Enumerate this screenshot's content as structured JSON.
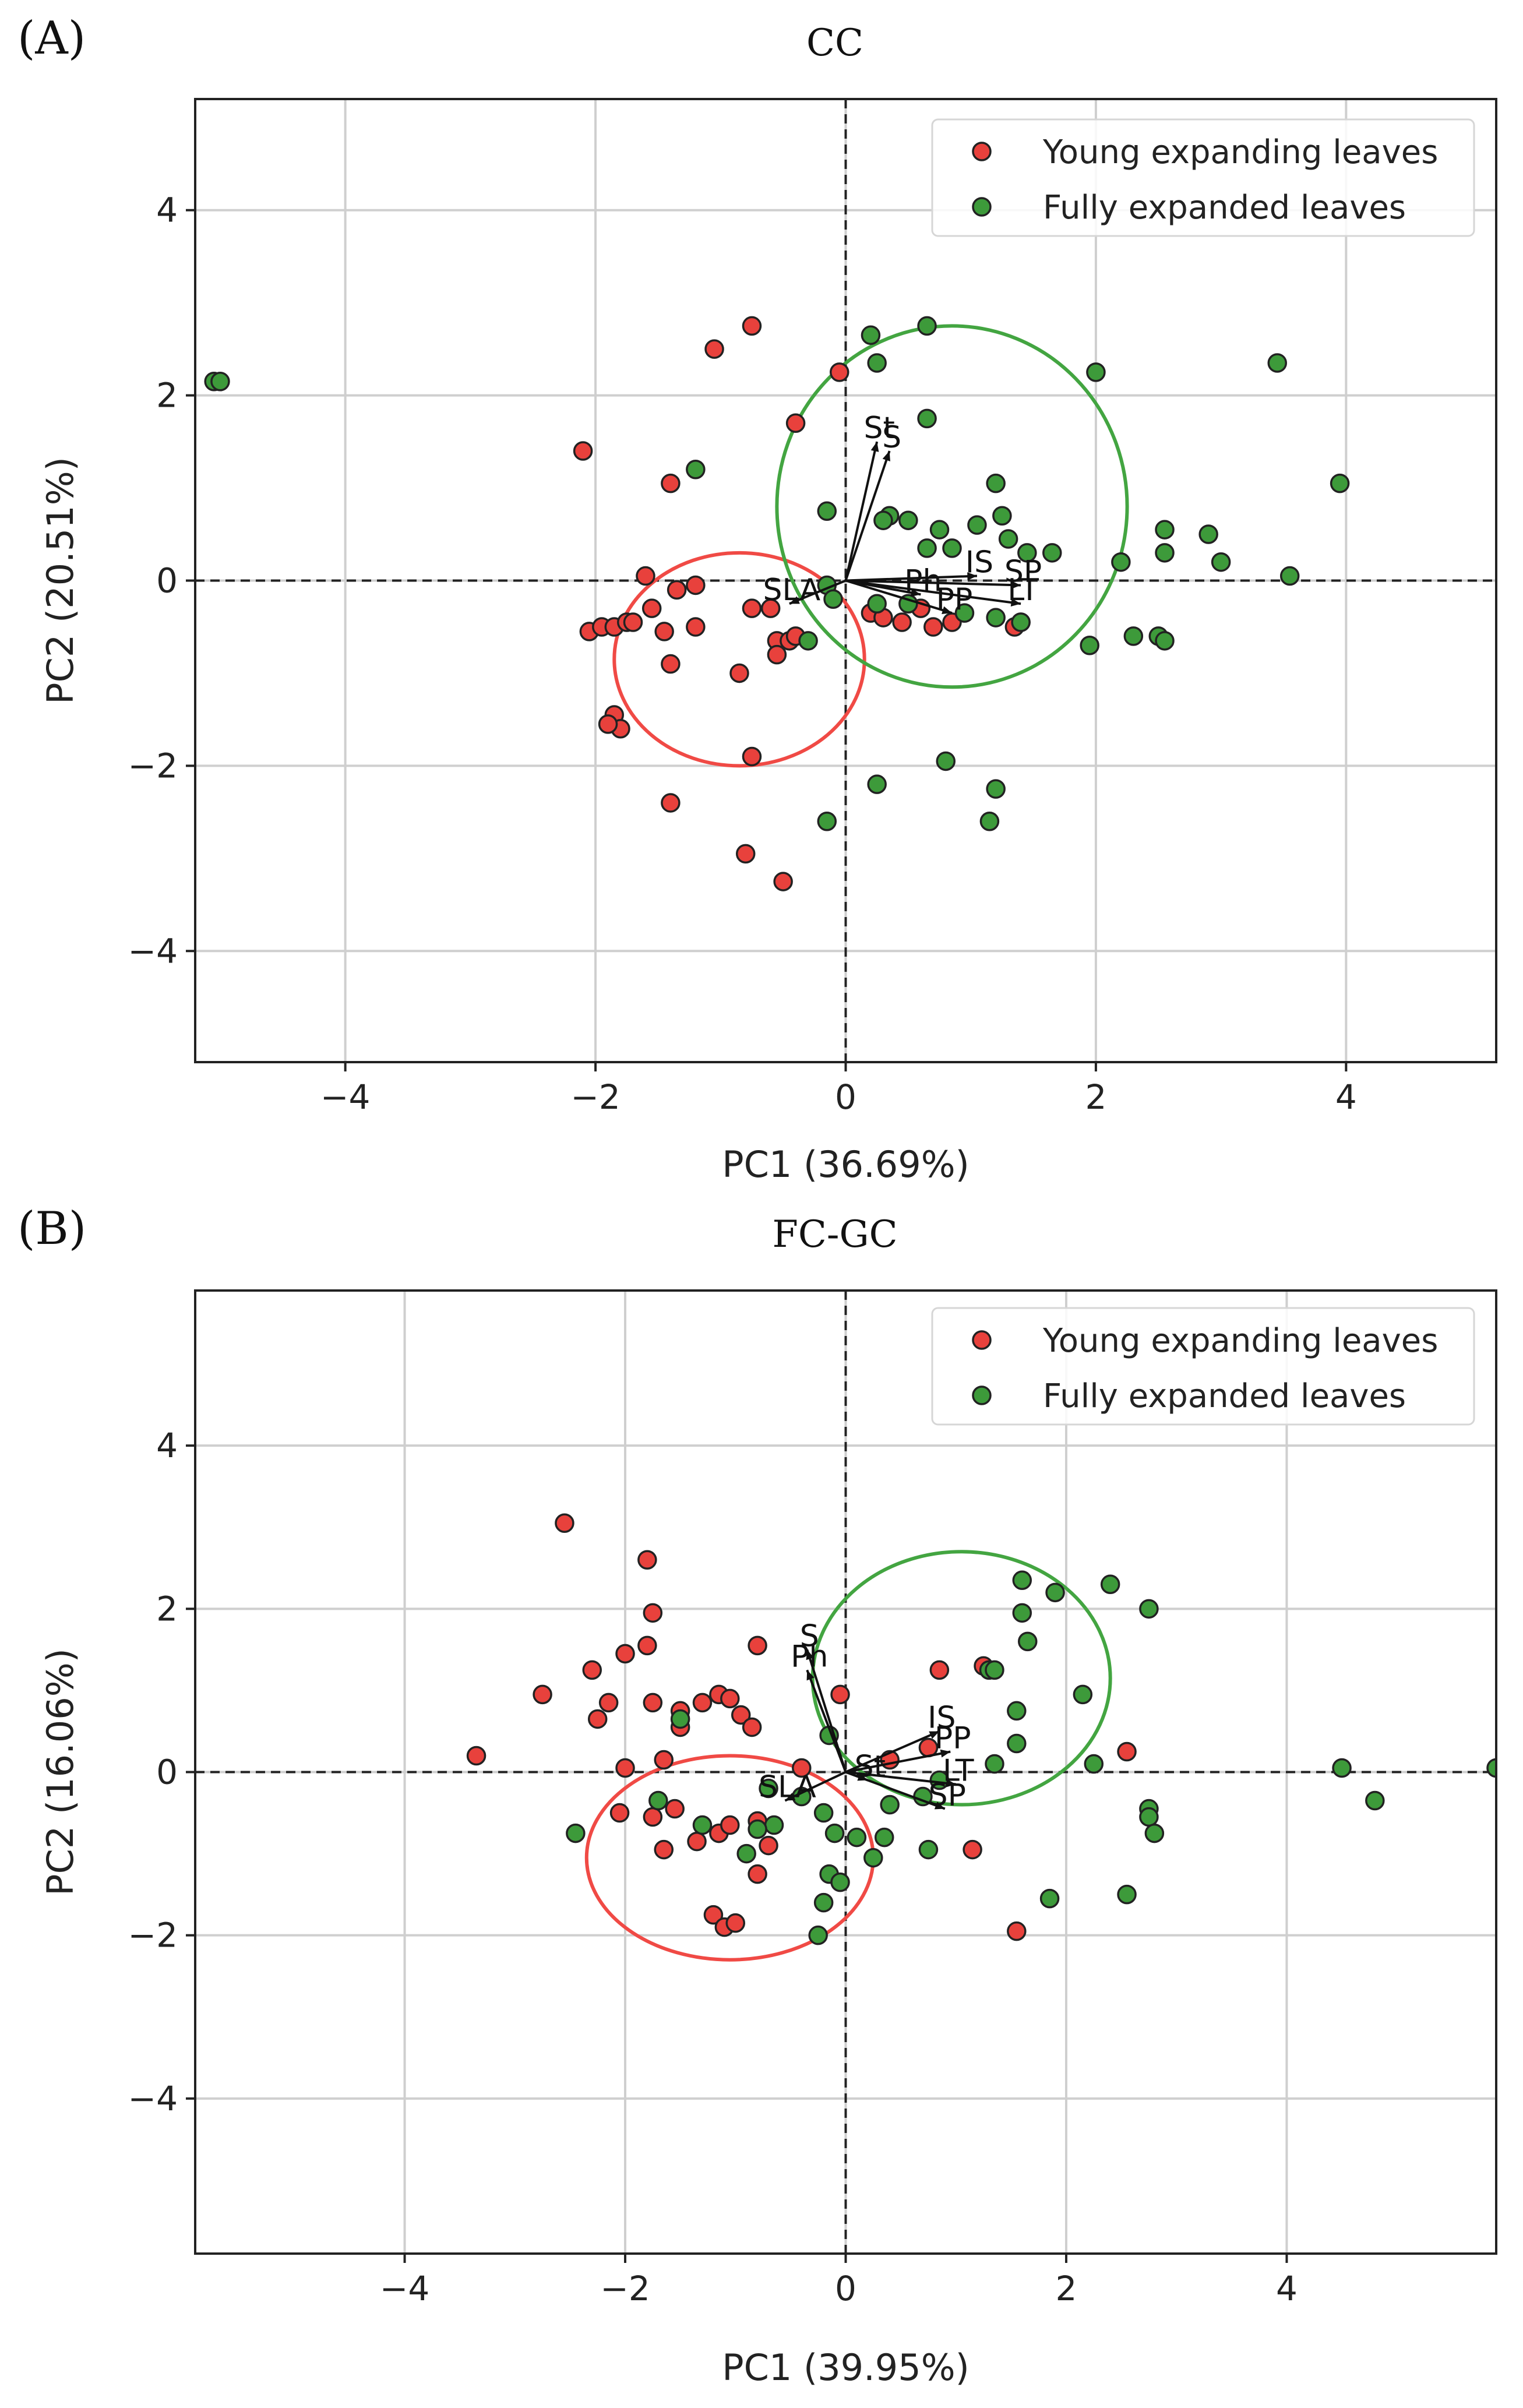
{
  "figure": {
    "panel_labels": [
      "(A)",
      "(B)"
    ]
  },
  "colors": {
    "young": "#e8413c",
    "mature": "#3d9a3a",
    "young_ellipse": "#f04a45",
    "mature_ellipse": "#43a541"
  },
  "chart_data": [
    {
      "type": "scatter",
      "title": "CC",
      "xlabel": "PC1 (36.69%)",
      "ylabel": "PC2 (20.51%)",
      "xlim": [
        -5.2,
        5.2
      ],
      "ylim": [
        -5.2,
        5.2
      ],
      "xticks": [
        -4,
        -2,
        0,
        2,
        4
      ],
      "yticks": [
        -4,
        -2,
        0,
        2,
        4
      ],
      "xtick_labels": [
        "−4",
        "−2",
        "0",
        "2",
        "4"
      ],
      "ytick_labels": [
        "−4",
        "−2",
        "0",
        "2",
        "4"
      ],
      "grid": true,
      "legend_position": "top-right",
      "series": [
        {
          "name": "Young expanding leaves",
          "color_key": "young",
          "points": [
            [
              -0.75,
              2.75
            ],
            [
              -1.05,
              2.5
            ],
            [
              -0.05,
              2.25
            ],
            [
              -2.1,
              1.4
            ],
            [
              -0.4,
              1.7
            ],
            [
              -1.4,
              1.05
            ],
            [
              -1.6,
              0.05
            ],
            [
              -1.2,
              -0.05
            ],
            [
              -1.35,
              -0.1
            ],
            [
              -2.05,
              -0.55
            ],
            [
              -1.95,
              -0.5
            ],
            [
              -1.85,
              -0.5
            ],
            [
              -1.75,
              -0.45
            ],
            [
              -1.7,
              -0.45
            ],
            [
              -1.55,
              -0.3
            ],
            [
              -1.45,
              -0.55
            ],
            [
              -1.2,
              -0.5
            ],
            [
              -0.75,
              -0.3
            ],
            [
              -0.6,
              -0.3
            ],
            [
              -0.55,
              -0.65
            ],
            [
              -0.45,
              -0.65
            ],
            [
              -0.4,
              -0.6
            ],
            [
              -0.55,
              -0.8
            ],
            [
              -0.85,
              -1.0
            ],
            [
              -1.4,
              -0.9
            ],
            [
              -1.85,
              -1.45
            ],
            [
              -1.8,
              -1.6
            ],
            [
              -1.9,
              -1.55
            ],
            [
              -0.75,
              -1.9
            ],
            [
              -1.4,
              -2.4
            ],
            [
              -0.8,
              -2.95
            ],
            [
              -0.5,
              -3.25
            ],
            [
              0.2,
              -0.35
            ],
            [
              0.3,
              -0.4
            ],
            [
              0.45,
              -0.45
            ],
            [
              0.6,
              -0.3
            ],
            [
              0.7,
              -0.5
            ],
            [
              0.85,
              -0.45
            ],
            [
              1.4,
              -0.45
            ],
            [
              1.35,
              -0.5
            ]
          ]
        },
        {
          "name": "Fully expanded leaves",
          "color_key": "mature",
          "points": [
            [
              -5.05,
              2.15
            ],
            [
              -5.0,
              2.15
            ],
            [
              0.2,
              2.65
            ],
            [
              0.65,
              2.75
            ],
            [
              0.25,
              2.35
            ],
            [
              0.65,
              1.75
            ],
            [
              1.2,
              1.05
            ],
            [
              2.0,
              2.25
            ],
            [
              3.45,
              2.35
            ],
            [
              3.95,
              1.05
            ],
            [
              1.05,
              0.6
            ],
            [
              1.25,
              0.7
            ],
            [
              1.3,
              0.45
            ],
            [
              1.45,
              0.3
            ],
            [
              1.65,
              0.3
            ],
            [
              0.5,
              0.65
            ],
            [
              0.65,
              0.35
            ],
            [
              0.85,
              0.35
            ],
            [
              0.35,
              0.7
            ],
            [
              0.3,
              0.65
            ],
            [
              -0.15,
              0.75
            ],
            [
              -1.2,
              1.2
            ],
            [
              0.75,
              0.55
            ],
            [
              2.2,
              0.2
            ],
            [
              2.55,
              0.55
            ],
            [
              2.9,
              0.5
            ],
            [
              3.0,
              0.2
            ],
            [
              3.55,
              0.05
            ],
            [
              2.55,
              0.3
            ],
            [
              2.5,
              -0.6
            ],
            [
              2.55,
              -0.65
            ],
            [
              2.3,
              -0.6
            ],
            [
              1.95,
              -0.7
            ],
            [
              1.4,
              -0.45
            ],
            [
              1.2,
              -0.4
            ],
            [
              0.95,
              -0.35
            ],
            [
              0.5,
              -0.25
            ],
            [
              0.25,
              -0.25
            ],
            [
              -0.15,
              -0.05
            ],
            [
              -0.3,
              -0.65
            ],
            [
              0.25,
              -2.2
            ],
            [
              0.8,
              -1.95
            ],
            [
              1.2,
              -2.25
            ],
            [
              1.15,
              -2.6
            ],
            [
              -0.15,
              -2.6
            ],
            [
              -0.1,
              -0.2
            ]
          ]
        }
      ],
      "ellipses": [
        {
          "name": "young",
          "cx": -0.85,
          "cy": -0.85,
          "rx": 1.0,
          "ry": 1.15
        },
        {
          "name": "mature",
          "cx": 0.85,
          "cy": 0.8,
          "rx": 1.4,
          "ry": 1.95
        }
      ],
      "loadings": [
        {
          "label": "St",
          "x": 0.25,
          "y": 1.5
        },
        {
          "label": "S",
          "x": 0.35,
          "y": 1.4
        },
        {
          "label": "IS",
          "x": 1.05,
          "y": 0.05
        },
        {
          "label": "SP",
          "x": 1.4,
          "y": -0.05
        },
        {
          "label": "LT",
          "x": 1.4,
          "y": -0.25
        },
        {
          "label": "Ph",
          "x": 0.6,
          "y": -0.15
        },
        {
          "label": "PP",
          "x": 0.85,
          "y": -0.35
        },
        {
          "label": "SLA",
          "x": -0.45,
          "y": -0.25
        }
      ]
    },
    {
      "type": "scatter",
      "title": "FC-GC",
      "xlabel": "PC1 (39.95%)",
      "ylabel": "PC2 (16.06%)",
      "xlim": [
        -5.9,
        5.9
      ],
      "ylim": [
        -5.9,
        5.9
      ],
      "xticks": [
        -4,
        -2,
        0,
        2,
        4
      ],
      "yticks": [
        -4,
        -2,
        0,
        2,
        4
      ],
      "xtick_labels": [
        "−4",
        "−2",
        "0",
        "2",
        "4"
      ],
      "ytick_labels": [
        "−4",
        "−2",
        "0",
        "2",
        "4"
      ],
      "grid": true,
      "legend_position": "top-right",
      "series": [
        {
          "name": "Young expanding leaves",
          "color_key": "young",
          "points": [
            [
              -2.55,
              3.05
            ],
            [
              -1.8,
              2.6
            ],
            [
              -1.75,
              1.95
            ],
            [
              -2.0,
              1.45
            ],
            [
              -2.3,
              1.25
            ],
            [
              -1.8,
              1.55
            ],
            [
              -0.8,
              1.55
            ],
            [
              -2.75,
              0.95
            ],
            [
              -2.25,
              0.65
            ],
            [
              -2.15,
              0.85
            ],
            [
              -1.75,
              0.85
            ],
            [
              -1.5,
              0.55
            ],
            [
              -1.3,
              0.85
            ],
            [
              -1.15,
              0.95
            ],
            [
              -1.05,
              0.9
            ],
            [
              -0.95,
              0.7
            ],
            [
              -0.85,
              0.55
            ],
            [
              -1.5,
              0.75
            ],
            [
              -3.35,
              0.2
            ],
            [
              -2.0,
              0.05
            ],
            [
              -1.65,
              0.15
            ],
            [
              -2.05,
              -0.5
            ],
            [
              -1.75,
              -0.55
            ],
            [
              -1.55,
              -0.45
            ],
            [
              -1.65,
              -0.95
            ],
            [
              -1.35,
              -0.85
            ],
            [
              -1.15,
              -0.75
            ],
            [
              -1.05,
              -0.65
            ],
            [
              -0.8,
              -0.6
            ],
            [
              -0.7,
              -0.9
            ],
            [
              -0.8,
              -1.25
            ],
            [
              -1.2,
              -1.75
            ],
            [
              -1.1,
              -1.9
            ],
            [
              -1.0,
              -1.85
            ],
            [
              -0.4,
              0.05
            ],
            [
              -0.05,
              0.95
            ],
            [
              0.4,
              0.15
            ],
            [
              0.75,
              0.3
            ],
            [
              0.85,
              1.25
            ],
            [
              1.15,
              -0.95
            ],
            [
              1.55,
              -1.95
            ],
            [
              1.25,
              1.3
            ],
            [
              2.55,
              0.25
            ]
          ]
        },
        {
          "name": "Fully expanded leaves",
          "color_key": "mature",
          "points": [
            [
              1.6,
              2.35
            ],
            [
              1.9,
              2.2
            ],
            [
              2.4,
              2.3
            ],
            [
              2.75,
              2.0
            ],
            [
              1.6,
              1.95
            ],
            [
              1.65,
              1.6
            ],
            [
              1.3,
              1.25
            ],
            [
              1.35,
              1.25
            ],
            [
              2.15,
              0.95
            ],
            [
              1.55,
              0.75
            ],
            [
              1.55,
              0.35
            ],
            [
              2.25,
              0.1
            ],
            [
              2.75,
              -0.45
            ],
            [
              2.75,
              -0.55
            ],
            [
              2.8,
              -0.75
            ],
            [
              2.55,
              -1.5
            ],
            [
              1.85,
              -1.55
            ],
            [
              1.35,
              0.1
            ],
            [
              0.85,
              -0.1
            ],
            [
              0.7,
              -0.3
            ],
            [
              0.4,
              -0.4
            ],
            [
              0.35,
              -0.8
            ],
            [
              0.25,
              -1.05
            ],
            [
              0.75,
              -0.95
            ],
            [
              0.1,
              -0.8
            ],
            [
              -0.1,
              -0.75
            ],
            [
              -0.2,
              -0.5
            ],
            [
              -0.15,
              -1.25
            ],
            [
              -0.05,
              -1.35
            ],
            [
              -0.2,
              -1.6
            ],
            [
              -0.25,
              -2.0
            ],
            [
              -0.15,
              0.45
            ],
            [
              -0.7,
              -0.2
            ],
            [
              -0.65,
              -0.65
            ],
            [
              -0.8,
              -0.7
            ],
            [
              -0.9,
              -1.0
            ],
            [
              -1.3,
              -0.65
            ],
            [
              -1.7,
              -0.35
            ],
            [
              -1.5,
              0.65
            ],
            [
              -2.45,
              -0.75
            ],
            [
              4.5,
              0.05
            ],
            [
              4.8,
              -0.35
            ],
            [
              5.9,
              0.05
            ],
            [
              -0.4,
              -0.3
            ]
          ]
        }
      ],
      "ellipses": [
        {
          "name": "young",
          "cx": -1.05,
          "cy": -1.05,
          "rx": 1.3,
          "ry": 1.25
        },
        {
          "name": "mature",
          "cx": 1.05,
          "cy": 1.15,
          "rx": 1.35,
          "ry": 1.55
        }
      ],
      "loadings": [
        {
          "label": "S",
          "x": -0.35,
          "y": 1.5
        },
        {
          "label": "Ph",
          "x": -0.35,
          "y": 1.25
        },
        {
          "label": "IS",
          "x": 0.85,
          "y": 0.5
        },
        {
          "label": "PP",
          "x": 0.95,
          "y": 0.25
        },
        {
          "label": "LT",
          "x": 1.0,
          "y": -0.15
        },
        {
          "label": "SP",
          "x": 0.9,
          "y": -0.45
        },
        {
          "label": "St",
          "x": 0.2,
          "y": -0.1
        },
        {
          "label": "SLA",
          "x": -0.55,
          "y": -0.35
        }
      ]
    }
  ]
}
